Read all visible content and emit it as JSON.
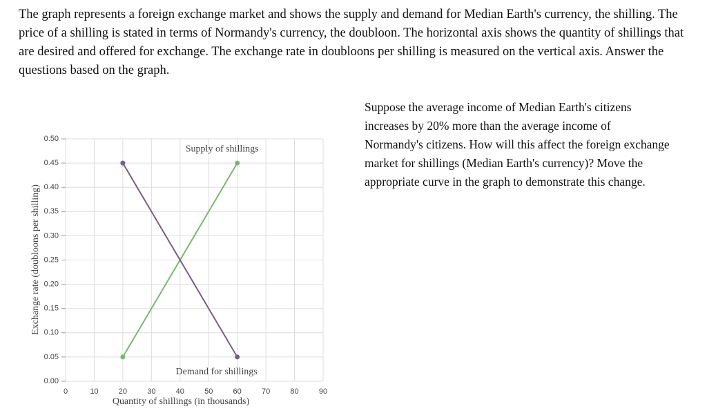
{
  "question": "The graph represents a foreign exchange market and shows the supply and demand for Median Earth's currency, the shilling. The price of a shilling is stated in terms of Normandy's currency, the doubloon. The horizontal axis shows the quantity of shillings that are desired and offered for exchange. The exchange rate in doubloons per shilling is measured on the vertical axis. Answer the questions based on the graph.",
  "prompt": "Suppose the average income of Median Earth's citizens increases by 20% more than the average income of Normandy's citizens. How will this affect the foreign exchange market for shillings (Median Earth's currency)? Move the appropriate curve in the graph to demonstrate this change.",
  "chart_data": {
    "type": "line",
    "x_label": "Quantity of shillings (in thousands)",
    "y_label": "Exchange rate (doubloons per shilling)",
    "xlim": [
      0,
      90
    ],
    "ylim": [
      0,
      0.5
    ],
    "xticks": [
      0,
      10,
      20,
      30,
      40,
      50,
      60,
      70,
      80,
      90
    ],
    "yticks": [
      {
        "value": 0,
        "label": "0.00"
      },
      0.05,
      {
        "value": 0.1,
        "label": "0.10"
      },
      0.15,
      {
        "value": 0.2,
        "label": "0.20"
      },
      0.25,
      {
        "value": 0.3,
        "label": "0.30"
      },
      0.35,
      {
        "value": 0.4,
        "label": "0.40"
      },
      0.45,
      {
        "value": 0.5,
        "label": "0.50"
      }
    ],
    "grid": true,
    "series": [
      {
        "name": "Supply of shillings",
        "color": "#77b96b",
        "x": [
          20,
          60
        ],
        "values": [
          0.05,
          0.45
        ]
      },
      {
        "name": "Demand for shillings",
        "color": "#7b5b8a",
        "x": [
          20,
          60
        ],
        "values": [
          0.45,
          0.05
        ]
      }
    ]
  }
}
